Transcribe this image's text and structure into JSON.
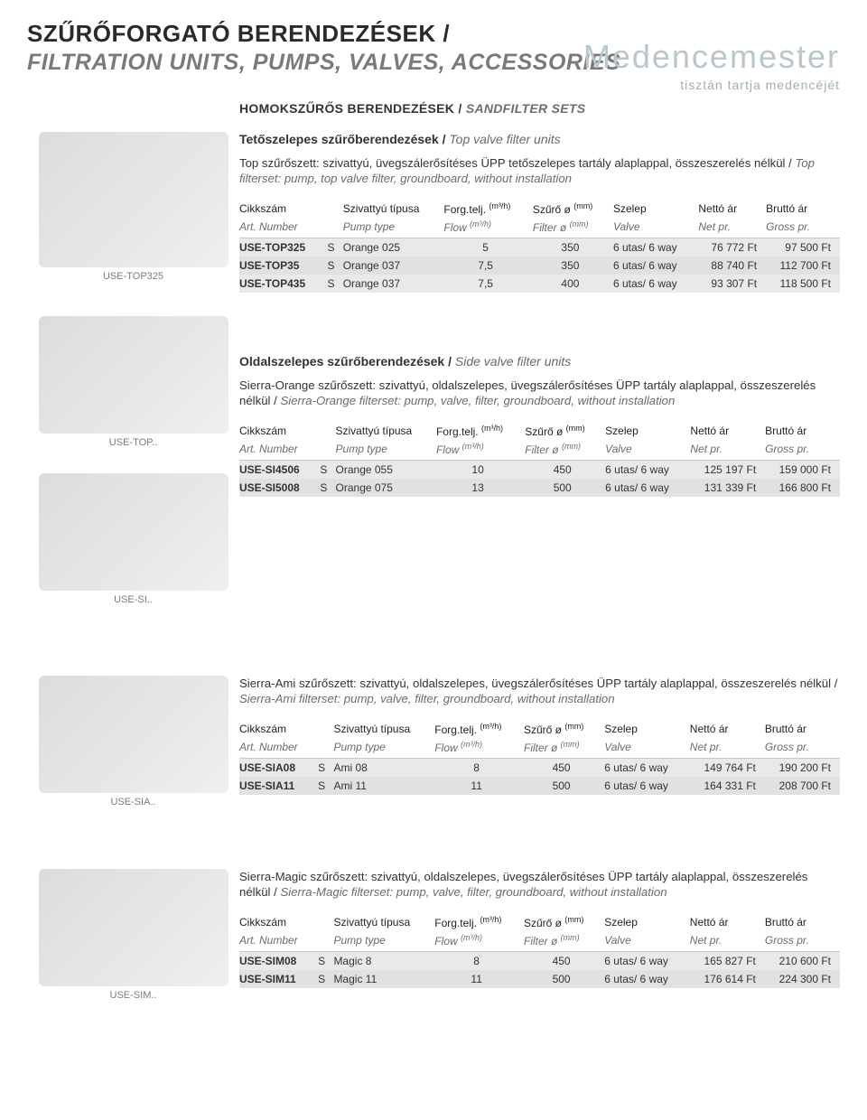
{
  "watermark": {
    "brand_a": "Medence",
    "brand_b": "mester",
    "tagline": "tisztán tartja medencéjét"
  },
  "title": {
    "hu": "SZŰRŐFORGATÓ BERENDEZÉSEK /",
    "en": "FILTRATION UNITS, PUMPS, VALVES, ACCESSORIES"
  },
  "section_label": {
    "hu": "HOMOKSZŰRŐS BERENDEZÉSEK /",
    "en": "SANDFILTER SETS"
  },
  "headers": {
    "hu": {
      "c0": "Cikkszám",
      "c2": "Szivattyú típusa",
      "c3": "Forg.telj.",
      "c3u": "(m³/h)",
      "c4": "Szűrő ø",
      "c4u": "(mm)",
      "c5": "Szelep",
      "c6": "Nettó ár",
      "c7": "Bruttó ár"
    },
    "en": {
      "c0": "Art. Number",
      "c2": "Pump type",
      "c3": "Flow",
      "c3u": "(m³/h)",
      "c4": "Filter ø",
      "c4u": "(mm)",
      "c5": "Valve",
      "c6": "Net pr.",
      "c7": "Gross pr."
    }
  },
  "blocks": [
    {
      "caption": "USE-TOP325",
      "subtitle": {
        "hu": "Tetőszelepes szűrőberendezések /",
        "en": "Top valve filter units"
      },
      "desc_hu": "Top szűrőszett: szivattyú, üvegszálerősítéses ÜPP tetőszelepes tartály alaplappal, összeszerelés nélkül /",
      "desc_en": "Top filterset: pump, top valve filter, groundboard, without installation",
      "rows": [
        [
          "USE-TOP325",
          "S",
          "Orange 025",
          "5",
          "350",
          "6 utas/ 6 way",
          "76 772 Ft",
          "97 500 Ft"
        ],
        [
          "USE-TOP35",
          "S",
          "Orange 037",
          "7,5",
          "350",
          "6 utas/ 6 way",
          "88 740 Ft",
          "112 700 Ft"
        ],
        [
          "USE-TOP435",
          "S",
          "Orange 037",
          "7,5",
          "400",
          "6 utas/ 6 way",
          "93 307 Ft",
          "118 500 Ft"
        ]
      ]
    },
    {
      "caption": "USE-TOP..",
      "caption2": "USE-SI..",
      "subtitle": {
        "hu": "Oldalszelepes szűrőberendezések /",
        "en": "Side valve filter units"
      },
      "desc_hu": "Sierra-Orange szűrőszett: szivattyú, oldalszelepes, üvegszálerősítéses ÜPP tartály alaplappal, összeszerelés nélkül /",
      "desc_en": "Sierra-Orange filterset: pump, valve, filter, groundboard, without installation",
      "rows": [
        [
          "USE-SI4506",
          "S",
          "Orange 055",
          "10",
          "450",
          "6 utas/ 6 way",
          "125 197 Ft",
          "159 000 Ft"
        ],
        [
          "USE-SI5008",
          "S",
          "Orange 075",
          "13",
          "500",
          "6 utas/ 6 way",
          "131 339 Ft",
          "166 800 Ft"
        ]
      ]
    },
    {
      "caption": "USE-SIA..",
      "desc_hu": "Sierra-Ami szűrőszett: szivattyú, oldalszelepes, üvegszálerősítéses ÜPP tartály alaplappal, összeszerelés nélkül /",
      "desc_en": "Sierra-Ami filterset: pump, valve, filter, groundboard, without installation",
      "rows": [
        [
          "USE-SIA08",
          "S",
          "Ami 08",
          "8",
          "450",
          "6 utas/ 6 way",
          "149 764 Ft",
          "190 200 Ft"
        ],
        [
          "USE-SIA11",
          "S",
          "Ami 11",
          "11",
          "500",
          "6 utas/ 6 way",
          "164 331 Ft",
          "208 700 Ft"
        ]
      ]
    },
    {
      "caption": "USE-SIM..",
      "desc_hu": "Sierra-Magic szűrőszett: szivattyú, oldalszelepes, üvegszálerősítéses ÜPP tartály alaplappal, összeszerelés nélkül /",
      "desc_en": "Sierra-Magic filterset: pump, valve, filter, groundboard, without installation",
      "rows": [
        [
          "USE-SIM08",
          "S",
          "Magic 8",
          "8",
          "450",
          "6 utas/ 6 way",
          "165 827 Ft",
          "210 600 Ft"
        ],
        [
          "USE-SIM11",
          "S",
          "Magic 11",
          "11",
          "500",
          "6 utas/ 6 way",
          "176 614 Ft",
          "224 300 Ft"
        ]
      ]
    }
  ]
}
